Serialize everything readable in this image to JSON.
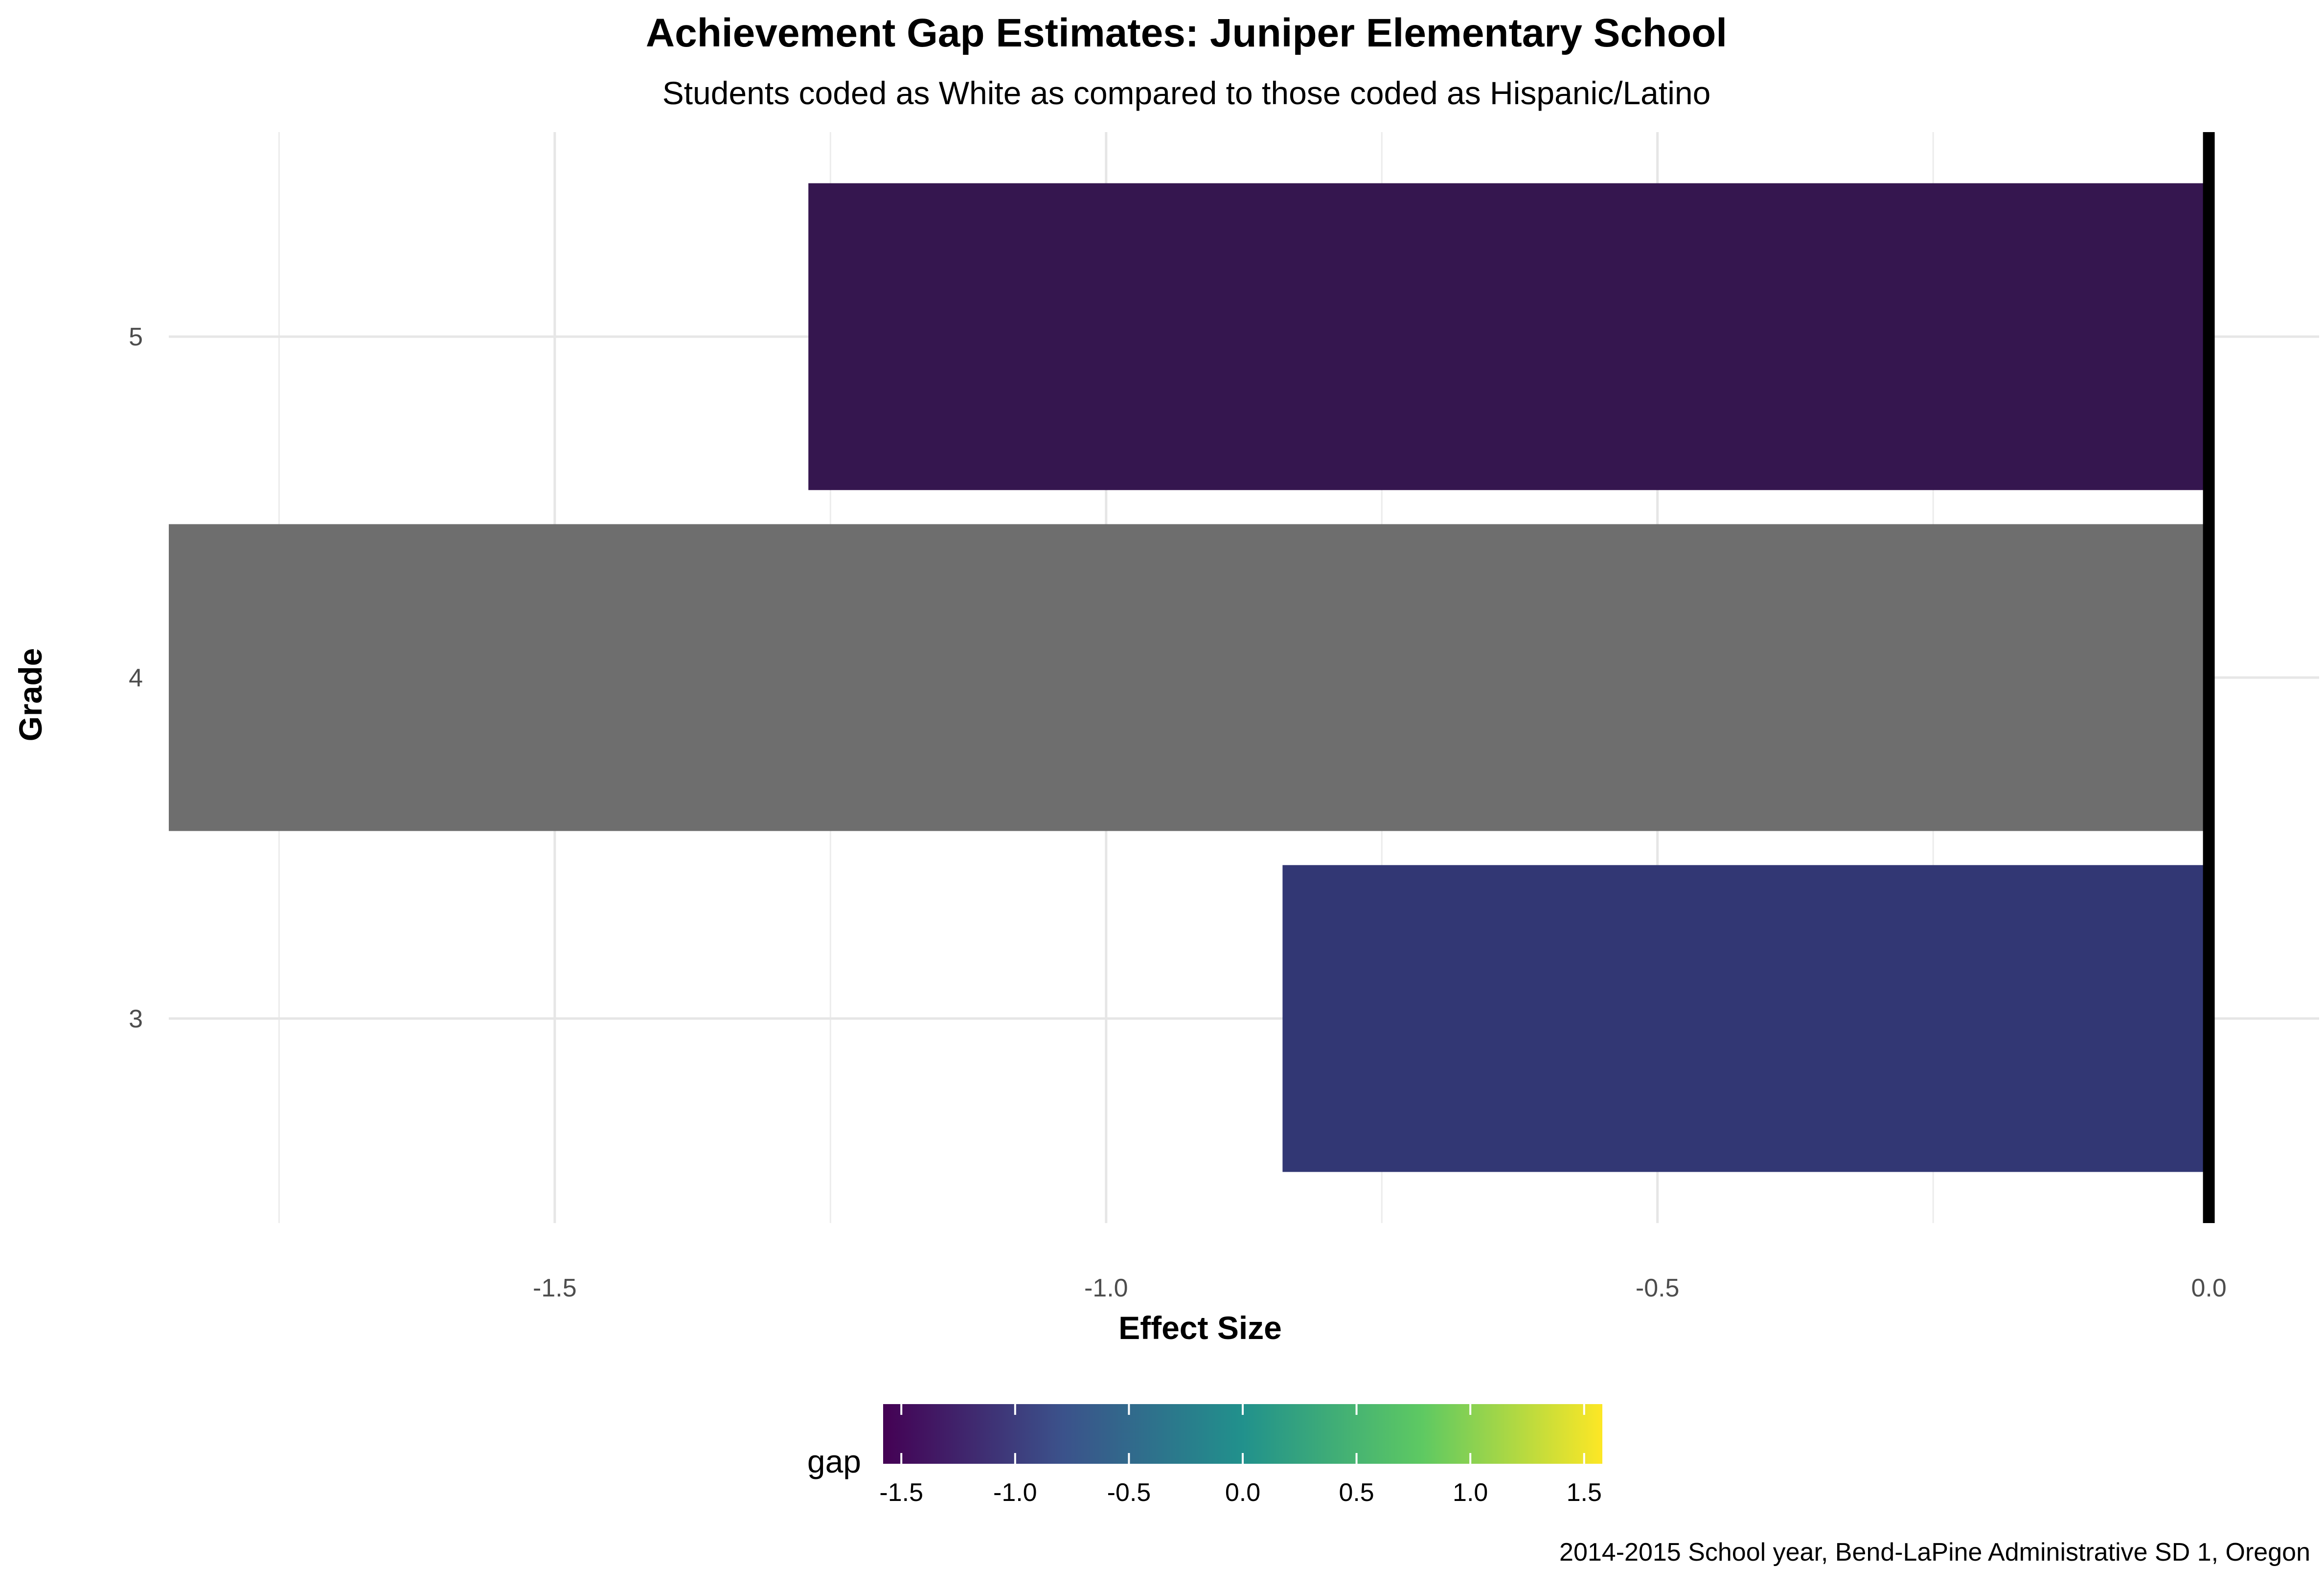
{
  "chart_data": {
    "type": "bar",
    "orientation": "horizontal",
    "title": "Achievement Gap Estimates: Juniper Elementary School",
    "subtitle": "Students coded as White as compared to those coded as Hispanic/Latino",
    "xlabel": "Effect Size",
    "ylabel": "Grade",
    "caption": "2014-2015 School year, Bend-LaPine Administrative SD 1, Oregon",
    "categories": [
      "3",
      "4",
      "5"
    ],
    "values": [
      -0.84,
      -1.85,
      -1.27
    ],
    "bar_colors": [
      "#323774",
      "#6e6e6e",
      "#35164f"
    ],
    "xlim": [
      -1.85,
      0.1
    ],
    "x_ticks": [
      {
        "value": -1.5,
        "label": "-1.5"
      },
      {
        "value": -1.0,
        "label": "-1.0"
      },
      {
        "value": -0.5,
        "label": "-0.5"
      },
      {
        "value": 0.0,
        "label": "0.0"
      }
    ],
    "reference_line": 0,
    "grid": true,
    "legend": {
      "title": "gap",
      "position": "bottom",
      "range": [
        -1.58,
        1.58
      ],
      "ticks": [
        {
          "value": -1.5,
          "label": "-1.5"
        },
        {
          "value": -1.0,
          "label": "-1.0"
        },
        {
          "value": -0.5,
          "label": "-0.5"
        },
        {
          "value": 0.0,
          "label": "0.0"
        },
        {
          "value": 0.5,
          "label": "0.5"
        },
        {
          "value": 1.0,
          "label": "1.0"
        },
        {
          "value": 1.5,
          "label": "1.5"
        }
      ],
      "colors": [
        "#440154",
        "#3b528b",
        "#21918c",
        "#5ec962",
        "#fde725"
      ]
    }
  }
}
